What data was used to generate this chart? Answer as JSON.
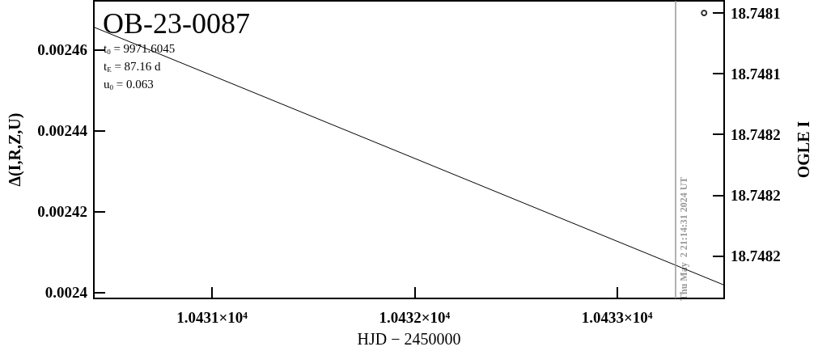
{
  "chart_data": {
    "type": "line",
    "title": "OB-23-0087",
    "xlabel": "HJD − 2450000",
    "ylabel": "Δ(I,R,Z,U)",
    "y2label": "OGLE I",
    "annotations": [
      "t$_{0}$ = 9971.6045",
      "t$_{E}$ = 87.16 d",
      "u$_{0}$ = 0.063",
      {
        "text": "Thu May  2 21:14:31 2024 UT",
        "x": 10433.29
      }
    ],
    "series": [
      {
        "color": "#000000",
        "x": [
          10430.416,
          10433.529
        ],
        "values": [
          0.0024656,
          0.0024019
        ],
        "marker": "none",
        "line_style": "solid"
      },
      {
        "type": "scatter",
        "color": "#000000",
        "axis": "y2",
        "x": [
          10433.43
        ],
        "values": [
          18.74812
        ],
        "marker": "circle"
      }
    ],
    "xlim": [
      10430.416,
      10433.529
    ],
    "xticks": [
      {
        "value": 10431,
        "label": "1.0431×10⁴"
      },
      {
        "value": 10432,
        "label": "1.0432×10⁴"
      },
      {
        "value": 10433,
        "label": "1.0433×10⁴"
      }
    ],
    "ylim": [
      0.0023986,
      0.0024721
    ],
    "yticks": [
      0.0024,
      0.00242,
      0.00244,
      0.00246
    ],
    "y2lim": [
      18.748214,
      18.748116
    ],
    "y2ticks": [
      {
        "value": 18.74812,
        "label": "18.7481"
      },
      {
        "value": 18.74814,
        "label": "18.7481"
      },
      {
        "value": 18.74816,
        "label": "18.7482"
      },
      {
        "value": 18.74818,
        "label": "18.7482"
      },
      {
        "value": 18.7482,
        "label": "18.7482"
      }
    ],
    "ref_lines": [
      {
        "axis": "x",
        "value": 10433.29,
        "color": "#999999"
      }
    ],
    "grid": false
  }
}
